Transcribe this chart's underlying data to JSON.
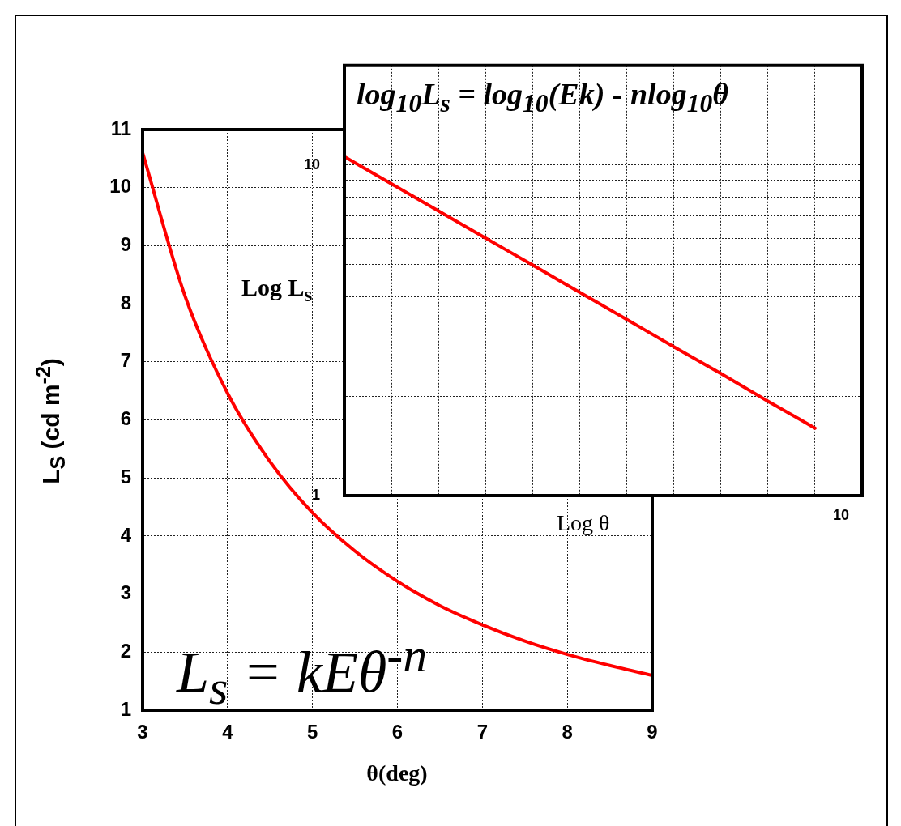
{
  "chart_data": [
    {
      "type": "line",
      "xlabel": "θ(deg)",
      "ylabel": "L$_{S}$ (cd m$^{-2}$)",
      "x": [
        3,
        3.5,
        4,
        4.5,
        5,
        5.5,
        6,
        6.5,
        7,
        7.5,
        8,
        8.5,
        9
      ],
      "values": [
        10.6,
        8.13,
        6.46,
        5.28,
        4.4,
        3.74,
        3.22,
        2.8,
        2.47,
        2.19,
        1.96,
        1.77,
        1.6
      ],
      "color": "#ff0000",
      "xlim": [
        3,
        9
      ],
      "ylim": [
        1,
        11
      ],
      "xticks": [
        3,
        4,
        5,
        6,
        7,
        8,
        9
      ],
      "yticks": [
        1,
        2,
        3,
        4,
        5,
        6,
        7,
        8,
        9,
        10,
        11
      ],
      "grid": true,
      "annotations": [
        "L$_{s}$ = kEθ$^{-n}$"
      ]
    },
    {
      "type": "line",
      "title": "log$_{10}$L$_{s}$ = log$_{10}$(Ek) - nlog$_{10}$θ",
      "xlabel": "Log θ",
      "ylabel": "Log L$_{s}$",
      "log": "y",
      "categories": [
        null,
        null,
        null,
        null,
        null,
        null,
        null,
        null,
        null,
        null,
        null,
        null
      ],
      "values": [
        10.6,
        8.77,
        7.26,
        6.01,
        4.98,
        4.12,
        3.41,
        2.82,
        2.34,
        1.93,
        1.6,
        null
      ],
      "color": "#ff0000",
      "ylim": [
        1,
        20
      ],
      "annotations": [
        "10"
      ],
      "yticks": [
        1,
        {
          "value": 2,
          "label": null
        },
        {
          "value": 3,
          "label": null
        },
        {
          "value": 4,
          "label": null
        },
        {
          "value": 5,
          "label": null
        },
        {
          "value": 6,
          "label": null
        },
        {
          "value": 7,
          "label": null
        },
        {
          "value": 8,
          "label": null
        },
        {
          "value": 9,
          "label": null
        },
        10
      ],
      "grid": true
    }
  ]
}
